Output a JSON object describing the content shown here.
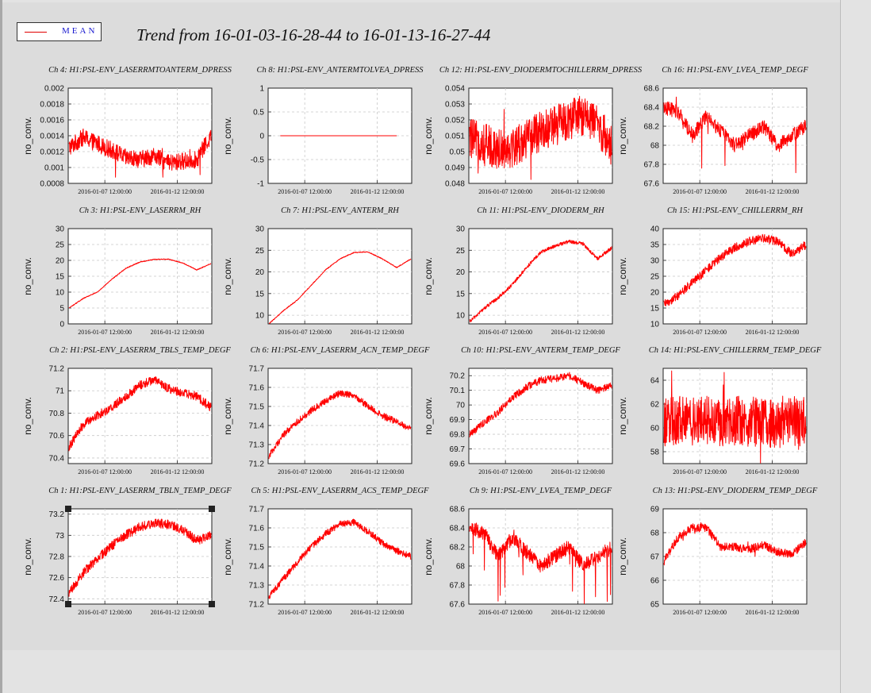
{
  "window": {
    "title": "Trend from 16-01-03-16-28-44 to 16-01-13-16-27-44"
  },
  "legend": {
    "label": "MEAN",
    "color": "#ee0000"
  },
  "colors": {
    "series": "#ff0000",
    "grid": "#c8c8c8",
    "frame": "#222222"
  },
  "chart_data": [
    {
      "channel": "Ch 4",
      "title": "Ch 4: H1:PSL-ENV_LASERRMTOANTERM_DPRESS",
      "ylabel": "no_conv.",
      "type": "line",
      "x": [
        "2016-01-03 16:28:44",
        "2016-01-04 16:28:44",
        "2016-01-05 16:28:44",
        "2016-01-06 16:28:44",
        "2016-01-07 16:28:44",
        "2016-01-08 16:28:44",
        "2016-01-09 16:28:44",
        "2016-01-10 16:28:44",
        "2016-01-11 16:28:44",
        "2016-01-12 16:28:44",
        "2016-01-13 16:27:44"
      ],
      "xticks": [
        "2016-01-07 12:00:00",
        "2016-01-12 12:00:00"
      ],
      "yticks": [
        "0.0008",
        "0.001",
        "0.0012",
        "0.0014",
        "0.0016",
        "0.0018",
        "0.002"
      ],
      "ylim": [
        0.0008,
        0.002
      ],
      "values": [
        0.00125,
        0.00138,
        0.0013,
        0.00122,
        0.00112,
        0.0011,
        0.00115,
        0.00105,
        0.00108,
        0.0011,
        0.0014
      ],
      "noise": 0.00022,
      "spikes": true
    },
    {
      "channel": "Ch 8",
      "title": "Ch 8: H1:PSL-ENV_ANTERMTOLVEA_DPRESS",
      "ylabel": "no_conv.",
      "type": "line",
      "xticks": [
        "2016-01-07 12:00:00",
        "2016-01-12 12:00:00"
      ],
      "yticks": [
        "-1",
        "-0.5",
        "0",
        "0.5",
        "1"
      ],
      "ylim": [
        -1,
        1
      ],
      "values": [
        0,
        0,
        0,
        0,
        0,
        0,
        0,
        0,
        0,
        0,
        0
      ],
      "noise": 0,
      "spikes": false,
      "xstart": 0.08,
      "xend": 0.9
    },
    {
      "channel": "Ch 12",
      "title": "Ch 12: H1:PSL-ENV_DIODERMTOCHILLERRM_DPRESS",
      "ylabel": "no_conv.",
      "type": "line",
      "xticks": [
        "2016-01-07 12:00:00",
        "2016-01-12 12:00:00"
      ],
      "yticks": [
        "0.048",
        "0.049",
        "0.05",
        "0.051",
        "0.052",
        "0.053",
        "0.054"
      ],
      "ylim": [
        0.048,
        0.054
      ],
      "values": [
        0.0508,
        0.0505,
        0.0502,
        0.0503,
        0.0508,
        0.0513,
        0.0516,
        0.052,
        0.0523,
        0.0517,
        0.0504
      ],
      "noise": 0.0026,
      "spikes": true
    },
    {
      "channel": "Ch 16",
      "title": "Ch 16: H1:PSL-ENV_LVEA_TEMP_DEGF",
      "ylabel": "no_conv.",
      "type": "line",
      "xticks": [
        "2016-01-07 12:00:00",
        "2016-01-12 12:00:00"
      ],
      "yticks": [
        "67.6",
        "67.8",
        "68",
        "68.2",
        "68.4",
        "68.6"
      ],
      "ylim": [
        67.6,
        68.6
      ],
      "values": [
        68.4,
        68.35,
        68.1,
        68.3,
        68.15,
        68.0,
        68.1,
        68.2,
        68.0,
        68.1,
        68.2
      ],
      "noise": 0.15,
      "spikes": true,
      "dips": true
    },
    {
      "channel": "Ch 3",
      "title": "Ch 3: H1:PSL-ENV_LASERRM_RH",
      "ylabel": "no_conv.",
      "type": "line",
      "xticks": [
        "2016-01-07 12:00:00",
        "2016-01-12 12:00:00"
      ],
      "yticks": [
        "0",
        "5",
        "10",
        "15",
        "20",
        "25",
        "30"
      ],
      "ylim": [
        0,
        30
      ],
      "values": [
        5,
        8,
        10,
        14,
        17.5,
        19.5,
        20.3,
        20.4,
        19.2,
        17,
        19
      ],
      "noise": 0.25,
      "spikes": false
    },
    {
      "channel": "Ch 7",
      "title": "Ch 7: H1:PSL-ENV_ANTERM_RH",
      "ylabel": "no_conv.",
      "type": "line",
      "xticks": [
        "2016-01-07 12:00:00",
        "2016-01-12 12:00:00"
      ],
      "yticks": [
        "10",
        "15",
        "20",
        "25",
        "30"
      ],
      "ylim": [
        8,
        30
      ],
      "values": [
        8,
        11,
        13.5,
        17,
        20.5,
        23,
        24.5,
        24.6,
        23,
        21,
        23
      ],
      "noise": 0.2,
      "spikes": false
    },
    {
      "channel": "Ch 11",
      "title": "Ch 11: H1:PSL-ENV_DIODERM_RH",
      "ylabel": "no_conv.",
      "type": "line",
      "xticks": [
        "2016-01-07 12:00:00",
        "2016-01-12 12:00:00"
      ],
      "yticks": [
        "10",
        "15",
        "20",
        "25",
        "30"
      ],
      "ylim": [
        8,
        30
      ],
      "values": [
        8.5,
        11.5,
        14,
        17,
        21,
        24.5,
        26,
        27,
        26.5,
        23,
        25.5
      ],
      "noise": 0.8,
      "spikes": false
    },
    {
      "channel": "Ch 15",
      "title": "Ch 15: H1:PSL-ENV_CHILLERRM_RH",
      "ylabel": "no_conv.",
      "type": "line",
      "xticks": [
        "2016-01-07 12:00:00",
        "2016-01-12 12:00:00"
      ],
      "yticks": [
        "10",
        "15",
        "20",
        "25",
        "30",
        "35",
        "40"
      ],
      "ylim": [
        10,
        40
      ],
      "values": [
        16,
        19,
        23,
        27,
        31,
        34,
        36,
        37,
        36,
        32,
        35
      ],
      "noise": 2.8,
      "spikes": false
    },
    {
      "channel": "Ch 2",
      "title": "Ch 2: H1:PSL-ENV_LASERRM_TBLS_TEMP_DEGF",
      "ylabel": "no_conv.",
      "type": "line",
      "xticks": [
        "2016-01-07 12:00:00",
        "2016-01-12 12:00:00"
      ],
      "yticks": [
        "70.4",
        "70.6",
        "70.8",
        "71",
        "71.2"
      ],
      "ylim": [
        70.35,
        71.2
      ],
      "values": [
        70.5,
        70.7,
        70.78,
        70.85,
        70.95,
        71.05,
        71.1,
        71.02,
        70.98,
        70.95,
        70.85
      ],
      "noise": 0.08,
      "spikes": false
    },
    {
      "channel": "Ch 6",
      "title": "Ch 6: H1:PSL-ENV_LASERRM_ACN_TEMP_DEGF",
      "ylabel": "no_conv.",
      "type": "line",
      "xticks": [
        "2016-01-07 12:00:00",
        "2016-01-12 12:00:00"
      ],
      "yticks": [
        "71.2",
        "71.3",
        "71.4",
        "71.5",
        "71.6",
        "71.7"
      ],
      "ylim": [
        71.2,
        71.7
      ],
      "values": [
        71.24,
        71.35,
        71.42,
        71.48,
        71.53,
        71.57,
        71.56,
        71.5,
        71.45,
        71.42,
        71.38
      ],
      "noise": 0.035,
      "spikes": false
    },
    {
      "channel": "Ch 10",
      "title": "Ch 10: H1:PSL-ENV_ANTERM_TEMP_DEGF",
      "ylabel": "no_conv.",
      "type": "line",
      "xticks": [
        "2016-01-07 12:00:00",
        "2016-01-12 12:00:00"
      ],
      "yticks": [
        "69.6",
        "69.7",
        "69.8",
        "69.9",
        "70",
        "70.1",
        "70.2"
      ],
      "ylim": [
        69.6,
        70.25
      ],
      "values": [
        69.8,
        69.88,
        69.95,
        70.05,
        70.12,
        70.17,
        70.18,
        70.2,
        70.15,
        70.1,
        70.13
      ],
      "noise": 0.05,
      "spikes": false
    },
    {
      "channel": "Ch 14",
      "title": "Ch 14: H1:PSL-ENV_CHILLERRM_TEMP_DEGF",
      "ylabel": "no_conv.",
      "type": "line",
      "xticks": [
        "2016-01-07 12:00:00",
        "2016-01-12 12:00:00"
      ],
      "yticks": [
        "58",
        "60",
        "62",
        "64"
      ],
      "ylim": [
        57,
        65
      ],
      "values": [
        60.3,
        60.6,
        60.5,
        60.6,
        60.5,
        60.6,
        60.5,
        60.5,
        60.4,
        60.6,
        60.5
      ],
      "noise": 4.2,
      "spikes": true
    },
    {
      "channel": "Ch 1",
      "title": "Ch 1: H1:PSL-ENV_LASERRM_TBLN_TEMP_DEGF",
      "ylabel": "no_conv.",
      "type": "line",
      "selected": true,
      "xticks": [
        "2016-01-07 12:00:00",
        "2016-01-12 12:00:00"
      ],
      "yticks": [
        "72.4",
        "72.6",
        "72.8",
        "73",
        "73.2"
      ],
      "ylim": [
        72.35,
        73.25
      ],
      "values": [
        72.45,
        72.65,
        72.78,
        72.9,
        73.0,
        73.08,
        73.12,
        73.1,
        73.05,
        72.95,
        73.0
      ],
      "noise": 0.09,
      "spikes": false
    },
    {
      "channel": "Ch 5",
      "title": "Ch 5: H1:PSL-ENV_LASERRM_ACS_TEMP_DEGF",
      "ylabel": "no_conv.",
      "type": "line",
      "xticks": [
        "2016-01-07 12:00:00",
        "2016-01-12 12:00:00"
      ],
      "yticks": [
        "71.2",
        "71.3",
        "71.4",
        "71.5",
        "71.6",
        "71.7"
      ],
      "ylim": [
        71.2,
        71.7
      ],
      "values": [
        71.24,
        71.33,
        71.42,
        71.5,
        71.57,
        71.62,
        71.63,
        71.58,
        71.52,
        71.48,
        71.45
      ],
      "noise": 0.035,
      "spikes": false
    },
    {
      "channel": "Ch 9",
      "title": "Ch 9: H1:PSL-ENV_LVEA_TEMP_DEGF",
      "ylabel": "no_conv.",
      "type": "line",
      "xticks": [
        "2016-01-07 12:00:00",
        "2016-01-12 12:00:00"
      ],
      "yticks": [
        "67.6",
        "67.8",
        "68",
        "68.2",
        "68.4",
        "68.6"
      ],
      "ylim": [
        67.6,
        68.6
      ],
      "values": [
        68.4,
        68.35,
        68.1,
        68.3,
        68.15,
        68.0,
        68.1,
        68.2,
        68.0,
        68.1,
        68.2
      ],
      "noise": 0.15,
      "spikes": true,
      "dips": true
    },
    {
      "channel": "Ch 13",
      "title": "Ch 13: H1:PSL-ENV_DIODERM_TEMP_DEGF",
      "ylabel": "no_conv.",
      "type": "line",
      "xticks": [
        "2016-01-07 12:00:00",
        "2016-01-12 12:00:00"
      ],
      "yticks": [
        "65",
        "66",
        "67",
        "68",
        "69"
      ],
      "ylim": [
        65,
        69
      ],
      "values": [
        66.8,
        67.8,
        68.2,
        68.2,
        67.4,
        67.4,
        67.3,
        67.5,
        67.2,
        67.1,
        67.6
      ],
      "noise": 0.35,
      "spikes": true
    }
  ]
}
